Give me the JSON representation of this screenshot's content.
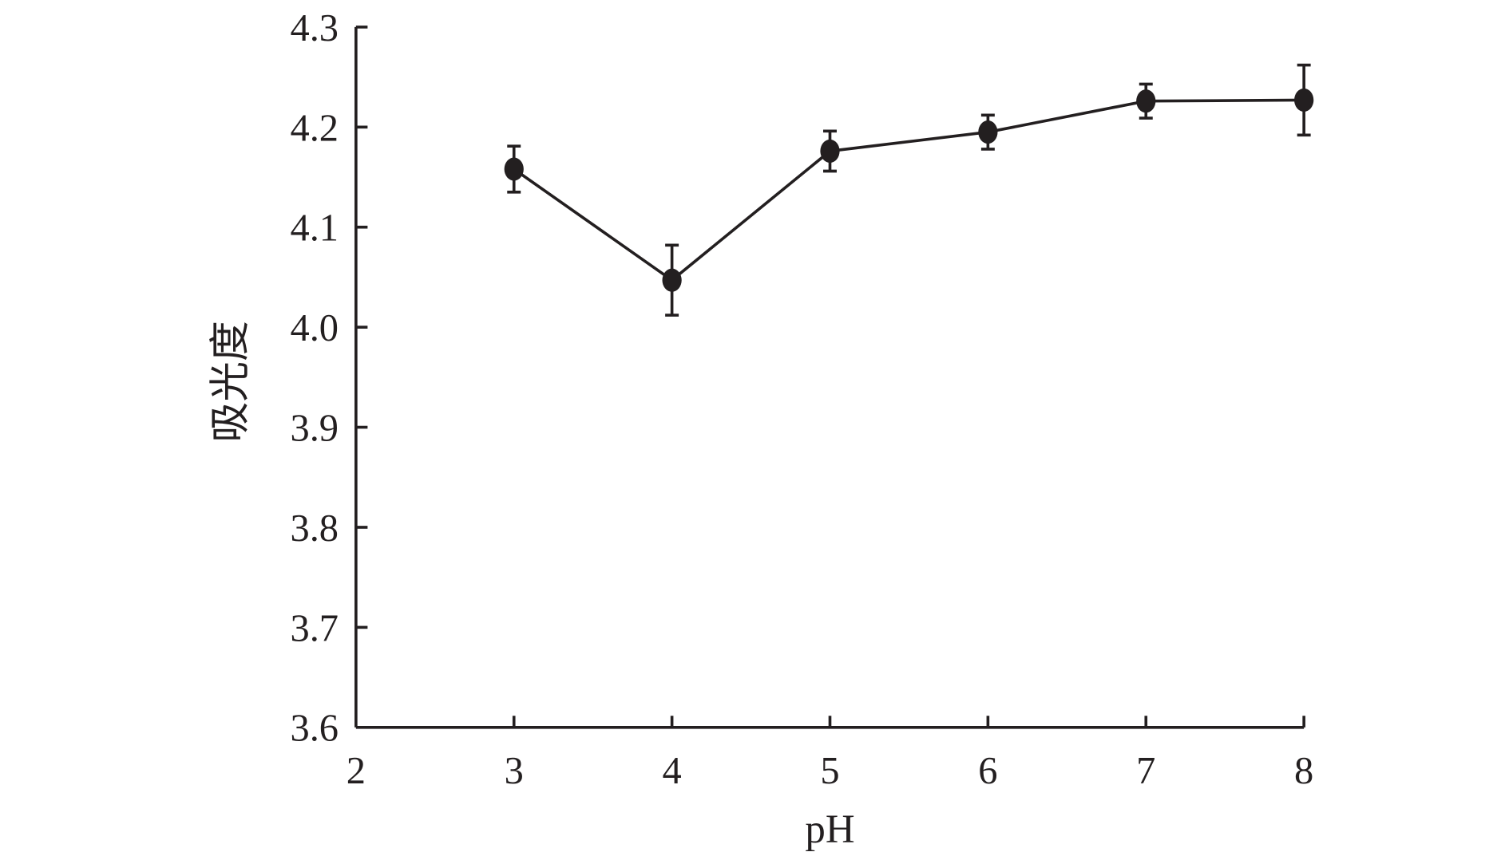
{
  "chart_data": {
    "type": "line",
    "title": "",
    "xlabel": "pH",
    "ylabel": "吸光度",
    "xlim": [
      2,
      8
    ],
    "ylim": [
      3.6,
      4.3
    ],
    "xticks": [
      "2",
      "3",
      "4",
      "5",
      "6",
      "7",
      "8"
    ],
    "yticks": [
      "3.6",
      "3.7",
      "3.8",
      "3.9",
      "4.0",
      "4.1",
      "4.2",
      "4.3"
    ],
    "grid": false,
    "series": [
      {
        "name": "吸光度",
        "x": [
          3,
          4,
          5,
          6,
          7,
          8
        ],
        "y": [
          4.158,
          4.047,
          4.176,
          4.195,
          4.226,
          4.227
        ],
        "error": [
          0.023,
          0.035,
          0.02,
          0.017,
          0.017,
          0.035
        ],
        "color": "#231f20"
      }
    ]
  }
}
